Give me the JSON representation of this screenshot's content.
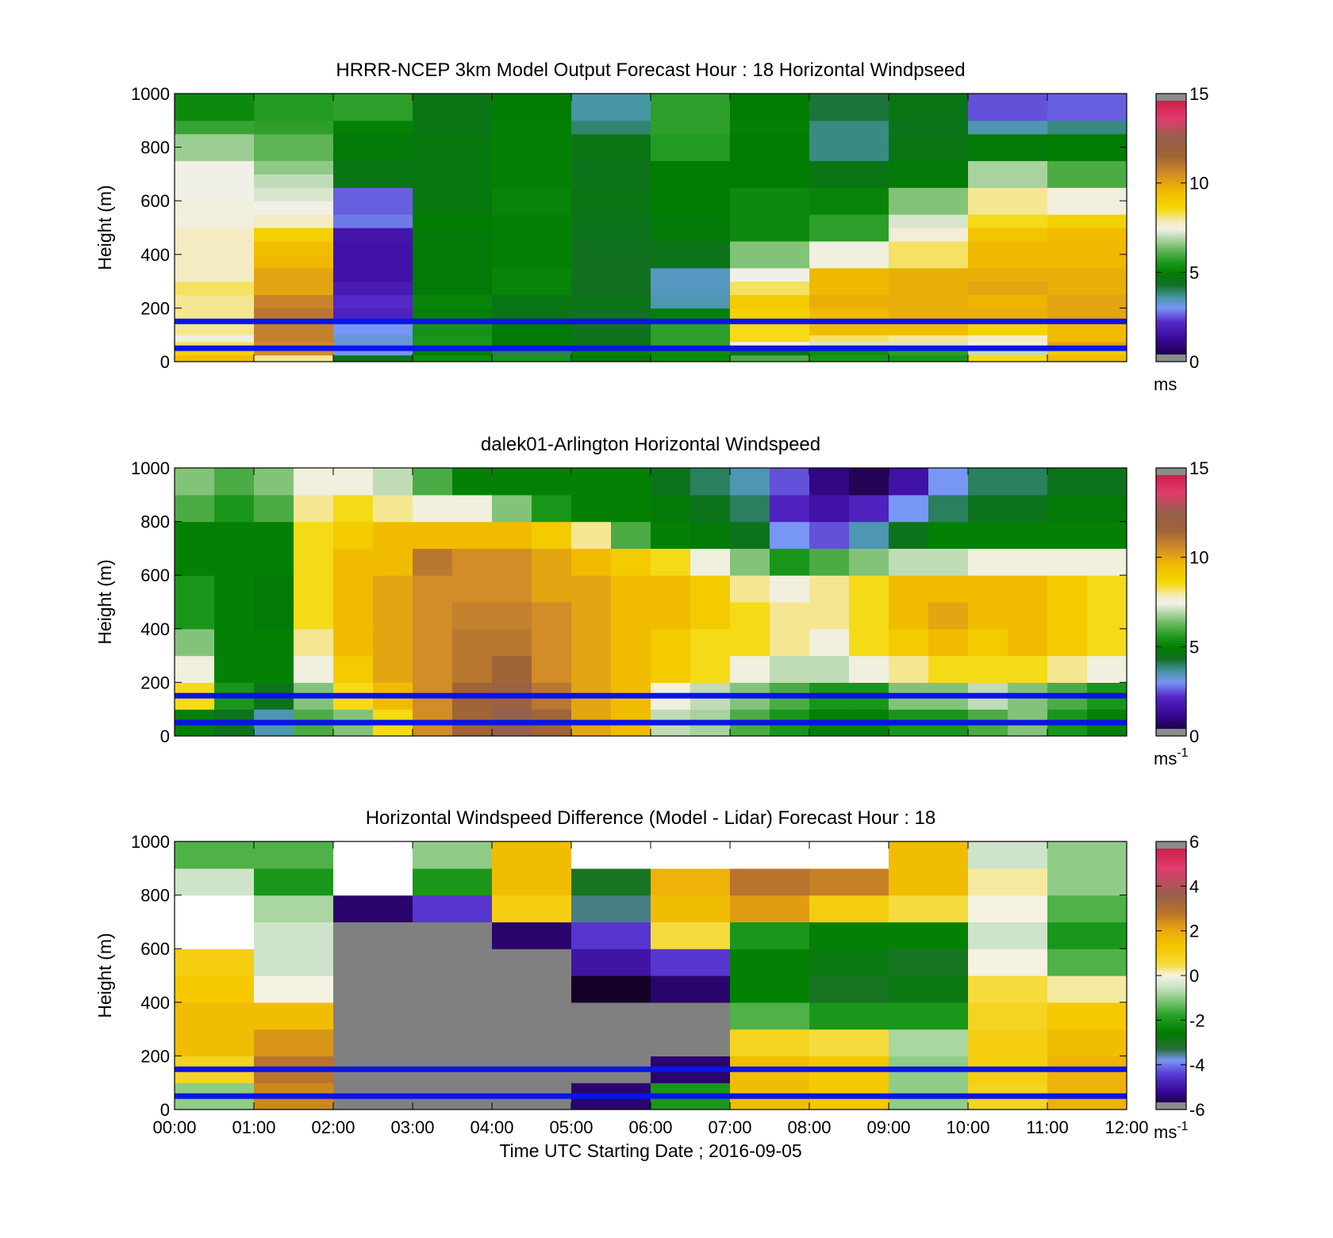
{
  "chart_data": [
    {
      "type": "heatmap",
      "title": "HRRR-NCEP 3km Model Output   Forecast Hour : 18 Horizontal Windpseed",
      "ylabel": "Height (m)",
      "xlabel": "",
      "x_range": [
        "00:00",
        "12:00"
      ],
      "ylim": [
        0,
        1000
      ],
      "yticks": [
        "0",
        "200",
        "400",
        "600",
        "800",
        "1000"
      ],
      "colorbar": {
        "min": 0,
        "max": 15,
        "ticks": [
          "0",
          "5",
          "10",
          "15"
        ],
        "unit": "ms",
        "unit_sup": "",
        "scale": "speed"
      },
      "reference_lines_m": [
        150,
        50
      ],
      "reference_line_color": "#0a14e6",
      "times_hours": [
        0,
        1,
        2,
        3,
        4,
        5,
        6,
        7,
        8,
        9,
        10,
        11
      ],
      "levels_m": [
        0,
        25,
        50,
        75,
        100,
        150,
        200,
        250,
        300,
        350,
        400,
        450,
        500,
        550,
        600,
        650,
        700,
        750,
        800,
        850,
        900,
        950
      ],
      "values": [
        [
          9.5,
          8.0,
          4.5,
          5.3,
          5.5,
          4.8,
          5.2,
          6.0,
          5.5,
          5.5,
          8.5,
          9.5
        ],
        [
          8.8,
          10.5,
          3.0,
          5.0,
          4.0,
          5.0,
          5.2,
          4.5,
          5.3,
          5.7,
          7.0,
          9.0
        ],
        [
          8.2,
          10.5,
          3.2,
          5.5,
          4.8,
          4.5,
          5.7,
          7.4,
          7.2,
          7.2,
          7.5,
          10.0
        ],
        [
          7.5,
          10.8,
          3.2,
          5.5,
          4.8,
          4.5,
          5.7,
          8.5,
          8.2,
          8.0,
          7.8,
          9.5
        ],
        [
          8.0,
          10.8,
          3.0,
          5.4,
          4.8,
          4.4,
          5.7,
          8.5,
          9.5,
          9.5,
          8.7,
          9.5
        ],
        [
          8.0,
          11.0,
          2.0,
          5.0,
          4.6,
          4.4,
          5.0,
          8.8,
          9.5,
          9.8,
          9.8,
          10.0
        ],
        [
          8.0,
          10.7,
          2.2,
          5.1,
          4.6,
          4.5,
          3.5,
          9.0,
          9.8,
          9.8,
          9.7,
          10.0
        ],
        [
          8.2,
          10.0,
          1.8,
          4.8,
          5.1,
          4.4,
          3.4,
          8.2,
          9.6,
          9.8,
          10.0,
          9.8
        ],
        [
          7.8,
          10.0,
          1.5,
          4.8,
          5.1,
          4.4,
          3.4,
          7.4,
          9.6,
          9.8,
          9.8,
          9.8
        ],
        [
          7.8,
          9.6,
          1.5,
          4.8,
          5.0,
          4.4,
          4.5,
          6.5,
          7.5,
          8.2,
          9.6,
          9.6
        ],
        [
          7.8,
          9.4,
          1.5,
          4.8,
          5.0,
          4.4,
          4.5,
          6.5,
          7.5,
          8.2,
          9.6,
          9.6
        ],
        [
          7.8,
          8.8,
          1.6,
          4.8,
          5.0,
          4.5,
          4.8,
          5.2,
          5.7,
          7.6,
          9.2,
          9.5
        ],
        [
          7.5,
          7.8,
          2.8,
          4.9,
          5.0,
          4.5,
          4.8,
          5.2,
          5.7,
          7.2,
          8.5,
          8.8
        ],
        [
          7.5,
          7.4,
          2.6,
          4.7,
          5.1,
          4.6,
          4.9,
          5.2,
          5.1,
          6.5,
          8.0,
          7.5
        ],
        [
          7.4,
          7.2,
          2.6,
          4.7,
          5.1,
          4.6,
          4.9,
          5.2,
          5.1,
          6.5,
          8.0,
          7.5
        ],
        [
          7.4,
          7.0,
          4.6,
          4.7,
          5.0,
          4.5,
          4.9,
          4.9,
          4.6,
          4.8,
          6.8,
          6.0
        ],
        [
          7.4,
          6.6,
          4.6,
          4.7,
          5.0,
          4.5,
          4.9,
          4.9,
          4.6,
          4.8,
          6.8,
          6.0
        ],
        [
          6.7,
          6.2,
          4.8,
          4.7,
          5.0,
          4.6,
          5.6,
          4.9,
          3.8,
          4.6,
          4.8,
          4.9
        ],
        [
          6.7,
          6.2,
          4.8,
          4.7,
          5.0,
          4.6,
          5.6,
          4.9,
          3.8,
          4.6,
          4.8,
          4.9
        ],
        [
          5.8,
          5.7,
          5.0,
          4.6,
          5.0,
          3.9,
          5.7,
          5.0,
          3.8,
          4.5,
          3.5,
          3.8
        ],
        [
          5.2,
          5.6,
          5.7,
          4.6,
          4.9,
          3.6,
          5.7,
          4.9,
          4.2,
          4.6,
          2.5,
          2.6
        ],
        [
          5.2,
          5.6,
          5.7,
          4.6,
          4.9,
          3.6,
          5.7,
          4.9,
          4.2,
          4.6,
          2.5,
          2.6
        ]
      ]
    },
    {
      "type": "heatmap",
      "title": "dalek01-Arlington  Horizontal Windspeed",
      "ylabel": "Height (m)",
      "xlabel": "",
      "x_range": [
        "00:00",
        "12:00"
      ],
      "ylim": [
        0,
        1000
      ],
      "yticks": [
        "0",
        "200",
        "400",
        "600",
        "800",
        "1000"
      ],
      "colorbar": {
        "min": 0,
        "max": 15,
        "ticks": [
          "0",
          "5",
          "10",
          "15"
        ],
        "unit": "ms",
        "unit_sup": "-1",
        "scale": "speed"
      },
      "reference_lines_m": [
        150,
        50
      ],
      "reference_line_color": "#0a14e6",
      "times_hours": [
        0.0,
        0.5,
        1.0,
        1.5,
        2.0,
        2.5,
        3.0,
        3.5,
        4.0,
        4.5,
        5.0,
        5.5,
        6.0,
        6.5,
        7.0,
        7.5,
        8.0,
        8.5,
        9.0,
        9.5,
        10.0,
        10.5,
        11.0,
        11.5
      ],
      "levels_m": [
        0,
        100,
        200,
        300,
        400,
        500,
        600,
        700,
        800,
        900
      ],
      "values": [
        [
          5.0,
          4.5,
          3.5,
          6.0,
          6.5,
          8.5,
          10.5,
          11.5,
          12.5,
          11.5,
          10.0,
          9.5,
          7.0,
          6.8,
          6.0,
          5.5,
          5.0,
          5.0,
          5.5,
          5.5,
          6.0,
          6.5,
          5.5,
          5.0
        ],
        [
          8.5,
          5.5,
          4.5,
          6.5,
          8.5,
          9.5,
          10.5,
          11.5,
          12.0,
          11.0,
          10.0,
          9.5,
          7.5,
          7.0,
          6.5,
          6.0,
          5.5,
          5.5,
          6.5,
          6.5,
          7.0,
          6.5,
          6.0,
          5.5
        ],
        [
          7.5,
          5.0,
          5.0,
          7.5,
          9.0,
          10.0,
          10.5,
          11.0,
          11.5,
          10.5,
          10.0,
          9.5,
          9.0,
          8.5,
          7.5,
          7.0,
          7.0,
          7.5,
          8.0,
          8.5,
          8.5,
          8.5,
          8.0,
          7.5
        ],
        [
          6.5,
          5.0,
          5.0,
          8.0,
          9.5,
          10.0,
          10.5,
          11.0,
          11.0,
          10.5,
          10.0,
          9.5,
          9.0,
          8.5,
          8.5,
          8.0,
          7.5,
          8.5,
          9.0,
          9.5,
          9.0,
          9.5,
          9.0,
          8.5
        ],
        [
          5.5,
          5.0,
          4.8,
          8.5,
          9.5,
          10.0,
          10.5,
          10.8,
          10.8,
          10.5,
          10.0,
          9.5,
          9.5,
          9.0,
          8.5,
          8.0,
          8.0,
          8.5,
          9.5,
          10.0,
          9.5,
          9.5,
          9.0,
          8.5
        ],
        [
          5.5,
          5.0,
          4.8,
          8.5,
          9.5,
          10.0,
          10.5,
          10.5,
          10.5,
          10.0,
          10.0,
          9.5,
          9.5,
          9.0,
          8.0,
          7.5,
          8.0,
          8.5,
          9.5,
          9.5,
          9.5,
          9.5,
          9.0,
          8.5
        ],
        [
          5.0,
          5.0,
          5.0,
          8.5,
          9.5,
          9.5,
          11.0,
          10.5,
          10.5,
          10.0,
          9.5,
          9.0,
          8.5,
          7.5,
          6.5,
          5.5,
          6.0,
          6.5,
          7.0,
          7.0,
          7.5,
          7.5,
          7.5,
          7.5
        ],
        [
          5.0,
          5.0,
          5.0,
          8.5,
          9.0,
          9.5,
          9.5,
          9.5,
          9.5,
          9.0,
          8.0,
          6.0,
          5.0,
          4.8,
          4.5,
          3.0,
          2.5,
          3.5,
          4.5,
          5.0,
          5.0,
          5.0,
          5.0,
          5.0
        ],
        [
          6.0,
          5.5,
          6.0,
          8.0,
          8.5,
          8.0,
          7.5,
          7.5,
          6.5,
          5.5,
          5.0,
          5.0,
          4.8,
          4.5,
          4.0,
          2.0,
          1.5,
          2.0,
          3.0,
          4.0,
          4.5,
          4.5,
          4.8,
          4.8
        ],
        [
          6.5,
          6.0,
          6.5,
          7.5,
          7.5,
          7.0,
          6.0,
          5.0,
          5.0,
          5.0,
          5.0,
          5.0,
          4.5,
          4.0,
          3.5,
          2.5,
          1.0,
          0.5,
          1.5,
          3.0,
          4.0,
          4.0,
          4.5,
          4.5
        ]
      ]
    },
    {
      "type": "heatmap",
      "title": "Horizontal Windspeed Difference (Model - Lidar) Forecast Hour : 18",
      "ylabel": "Height (m)",
      "xlabel": "Time UTC  Starting Date ; 2016-09-05",
      "x_range": [
        "00:00",
        "12:00"
      ],
      "xticks": [
        "00:00",
        "01:00",
        "02:00",
        "03:00",
        "04:00",
        "05:00",
        "06:00",
        "07:00",
        "08:00",
        "09:00",
        "10:00",
        "11:00",
        "12:00"
      ],
      "ylim": [
        0,
        1000
      ],
      "yticks": [
        "0",
        "200",
        "400",
        "600",
        "800",
        "1000"
      ],
      "colorbar": {
        "min": -6,
        "max": 6,
        "ticks": [
          "-6",
          "-4",
          "-2",
          "0",
          "2",
          "4",
          "6"
        ],
        "unit": "ms",
        "unit_sup": "-1",
        "scale": "difference"
      },
      "reference_lines_m": [
        150,
        50
      ],
      "reference_line_color": "#0a14e6",
      "grey_fill_meaning": "below-color-scale",
      "times_hours": [
        0,
        1,
        2,
        3,
        4,
        5,
        6,
        7,
        8,
        9,
        10,
        11
      ],
      "levels_m": [
        0,
        100,
        200,
        300,
        400,
        500,
        600,
        700,
        800,
        900
      ],
      "values": [
        [
          -1.0,
          2.5,
          -7.0,
          -7.0,
          -7.0,
          -5.5,
          -2.0,
          1.5,
          1.2,
          -1.0,
          0.8,
          1.8
        ],
        [
          0.8,
          2.8,
          -7.0,
          -7.0,
          -7.0,
          -7.0,
          -5.5,
          1.5,
          1.2,
          -1.0,
          1.0,
          1.8
        ],
        [
          1.5,
          2.3,
          -7.0,
          -7.0,
          -7.0,
          -7.0,
          -7.0,
          0.8,
          0.5,
          -0.8,
          1.0,
          1.5
        ],
        [
          1.5,
          1.5,
          -7.0,
          -7.0,
          -7.0,
          -7.0,
          -7.0,
          -1.5,
          -2.0,
          -2.0,
          0.8,
          1.2
        ],
        [
          1.2,
          0.0,
          -7.0,
          -7.0,
          -7.0,
          -6.0,
          -5.5,
          -2.5,
          -3.0,
          -2.8,
          0.5,
          0.2
        ],
        [
          1.0,
          -0.5,
          -7.0,
          -7.0,
          -7.0,
          -5.0,
          -4.5,
          -2.5,
          -2.8,
          -3.0,
          0.0,
          -1.5
        ],
        [
          null,
          -0.5,
          -7.0,
          -7.0,
          -5.5,
          -4.5,
          0.5,
          -2.0,
          -2.5,
          -2.5,
          -0.5,
          -2.0
        ],
        [
          null,
          -0.8,
          -5.5,
          -4.5,
          1.0,
          -3.5,
          1.5,
          2.2,
          1.0,
          0.5,
          0.0,
          -1.5
        ],
        [
          -0.5,
          -2.0,
          null,
          -2.0,
          1.5,
          -3.0,
          1.8,
          2.8,
          2.6,
          1.5,
          0.2,
          -1.0
        ],
        [
          -1.5,
          -1.5,
          null,
          -1.0,
          1.5,
          null,
          null,
          null,
          null,
          1.5,
          -0.5,
          -1.0
        ]
      ]
    }
  ]
}
